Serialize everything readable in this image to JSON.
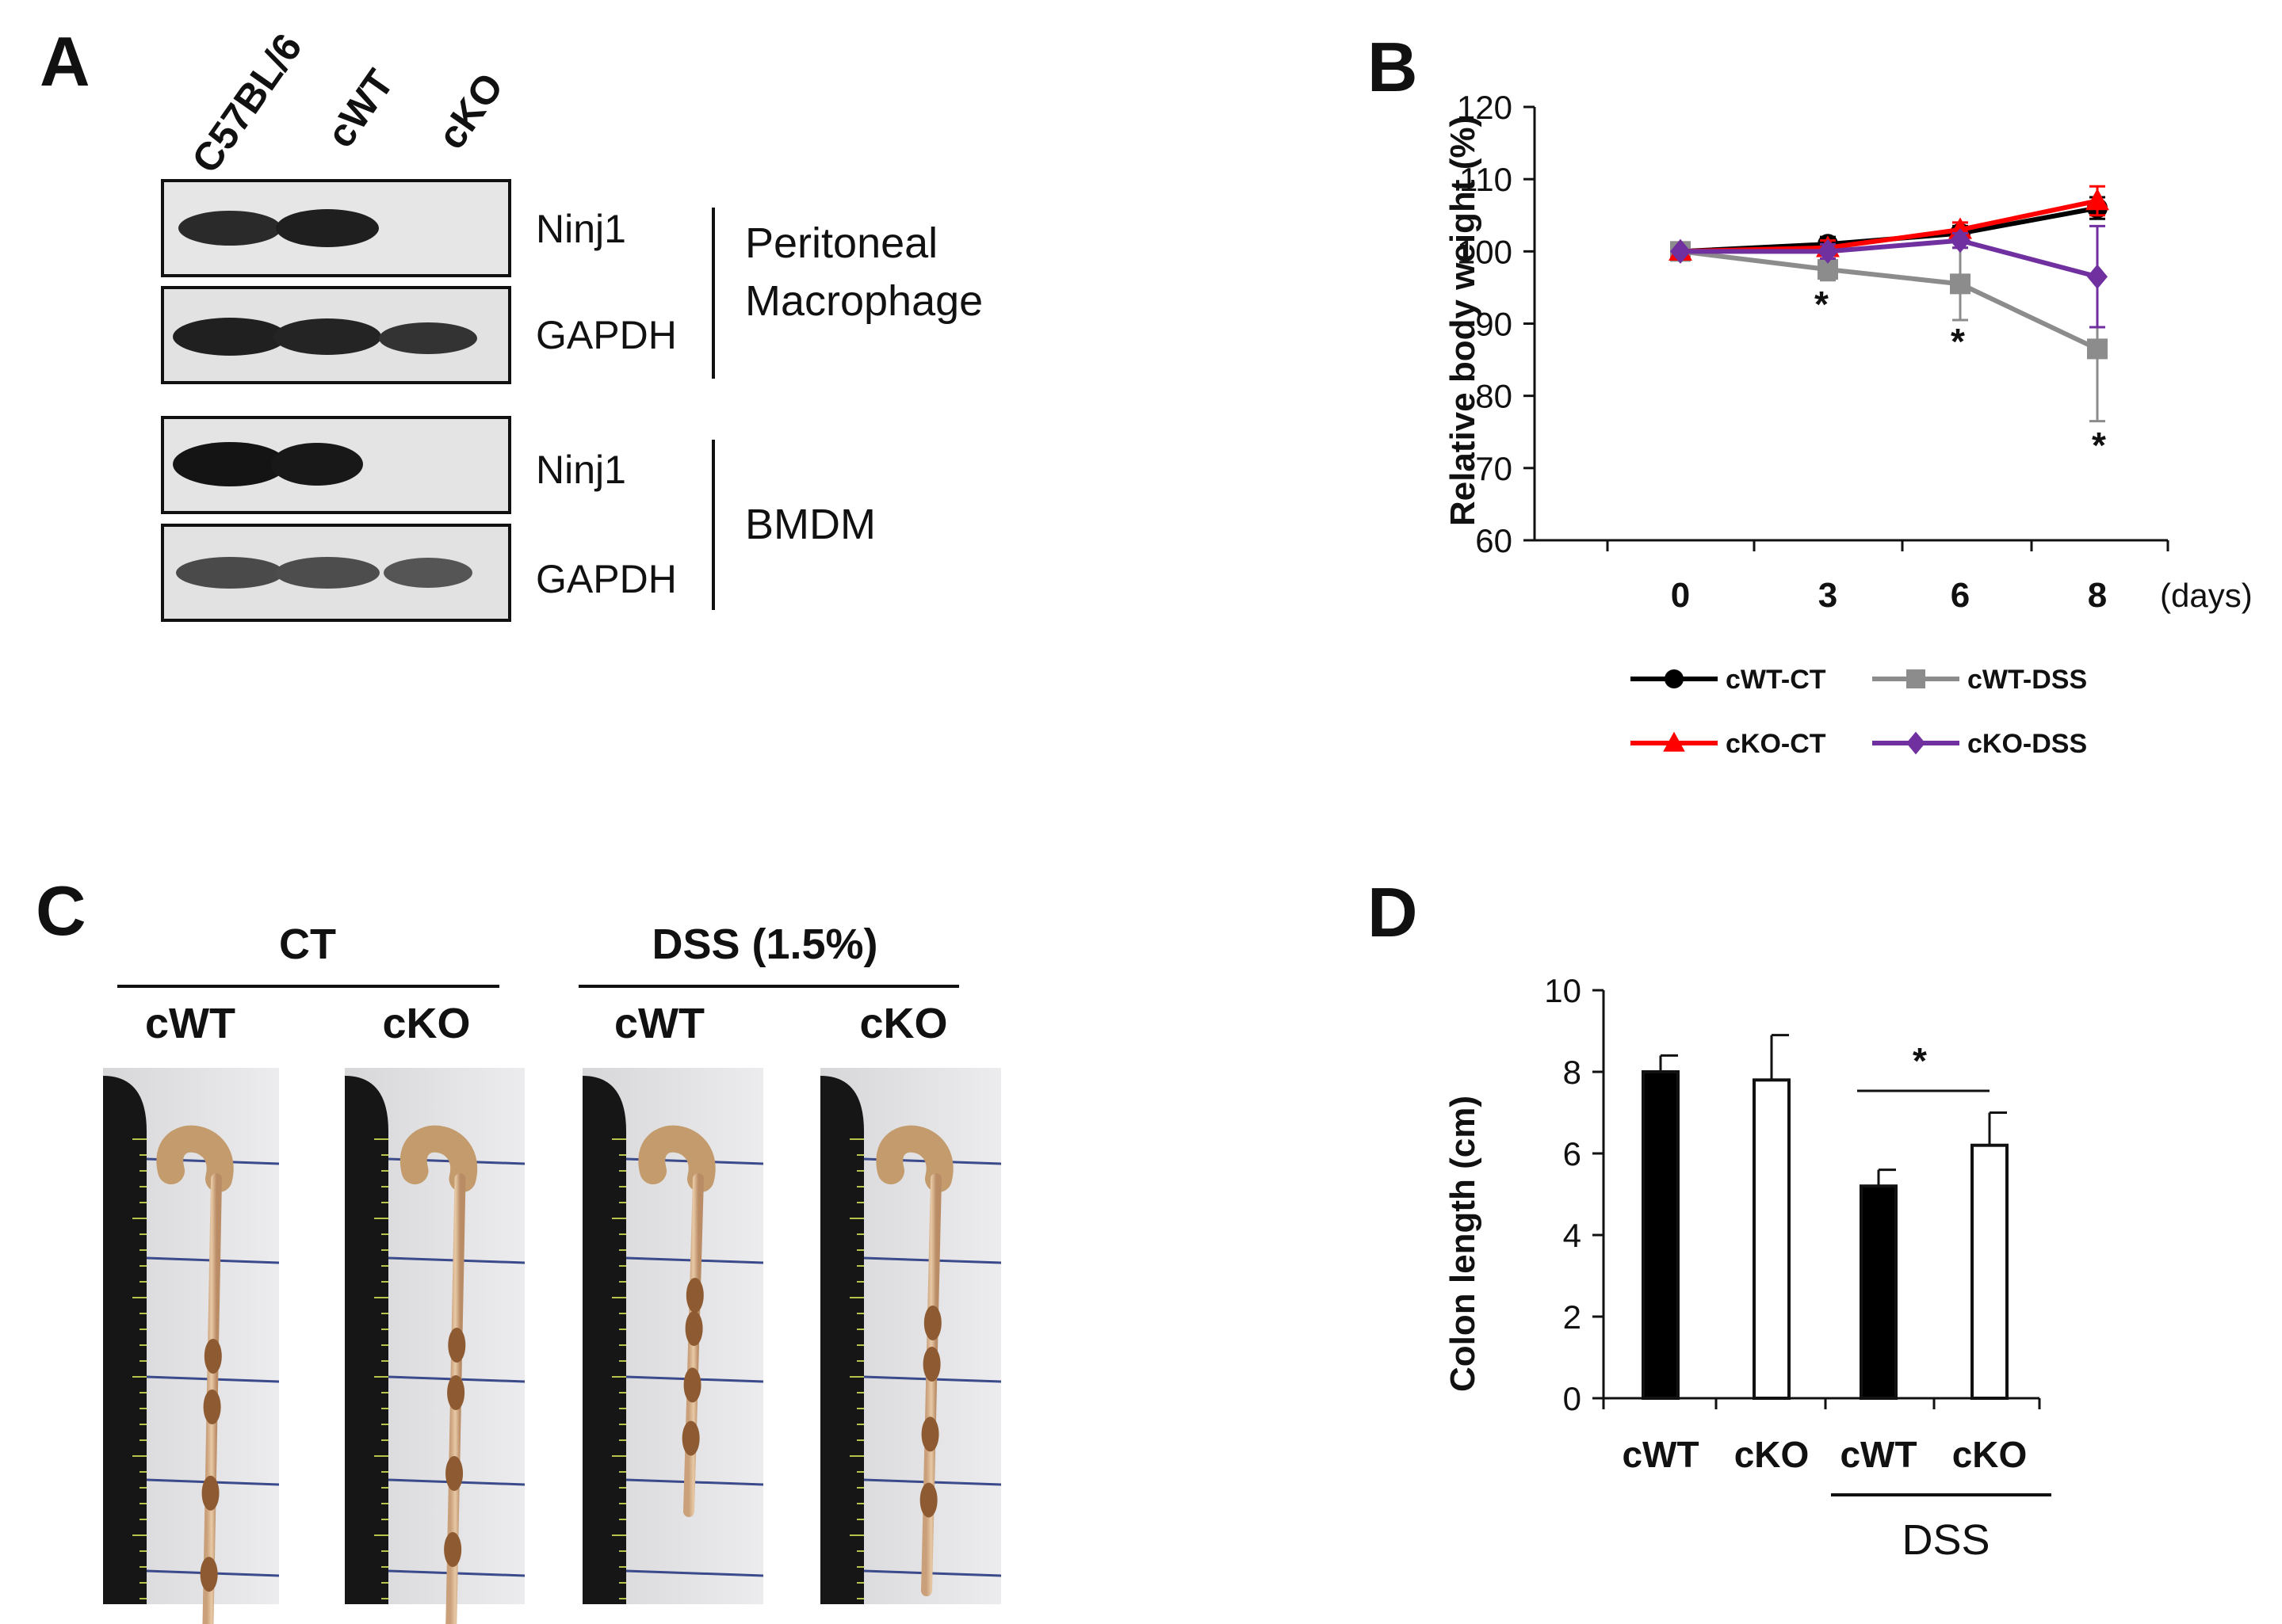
{
  "panels": {
    "a": "A",
    "b": "B",
    "c": "C",
    "d": "D"
  },
  "western": {
    "lanes": [
      "C57BL/6",
      "cWT",
      "cKO"
    ],
    "blots": [
      {
        "label": "Ninj1",
        "group": "peritoneal"
      },
      {
        "label": "GAPDH",
        "group": "peritoneal"
      },
      {
        "label": "Ninj1",
        "group": "bmdm"
      },
      {
        "label": "GAPDH",
        "group": "bmdm"
      }
    ],
    "groups": {
      "peritoneal_line1": "Peritoneal",
      "peritoneal_line2": "Macrophage",
      "bmdm": "BMDM"
    }
  },
  "chart_data": [
    {
      "type": "line",
      "title": "",
      "xlabel": "(days)",
      "ylabel": "Relative body weight (%)",
      "x": [
        0,
        3,
        6,
        8
      ],
      "x_tick_labels": [
        "0",
        "3",
        "6",
        "8"
      ],
      "ylim": [
        60,
        120
      ],
      "y_ticks": [
        60,
        70,
        80,
        90,
        100,
        110,
        120
      ],
      "series": [
        {
          "name": "cWT-CT",
          "values": [
            100,
            101,
            102.5,
            106
          ],
          "errors": [
            0.5,
            1,
            1,
            1.5
          ],
          "color": "#000000",
          "marker": "circle"
        },
        {
          "name": "cWT-DSS",
          "values": [
            100,
            97.5,
            95.5,
            86.5
          ],
          "errors": [
            0.5,
            1.5,
            5,
            10
          ],
          "color": "#8c8c8c",
          "marker": "square"
        },
        {
          "name": "cKO-CT",
          "values": [
            100,
            100.5,
            103,
            107
          ],
          "errors": [
            0.5,
            1,
            1,
            2
          ],
          "color": "#ff0000",
          "marker": "triangle"
        },
        {
          "name": "cKO-DSS",
          "values": [
            100,
            100,
            101.5,
            96.5
          ],
          "errors": [
            0.5,
            1,
            1,
            7
          ],
          "color": "#7030a0",
          "marker": "diamond"
        }
      ],
      "annotations": [
        "*",
        "*",
        "*"
      ],
      "legend": "bottom"
    },
    {
      "type": "bar",
      "title": "",
      "ylabel": "Colon length (cm)",
      "categories": [
        "cWT",
        "cKO",
        "cWT",
        "cKO"
      ],
      "values": [
        8.0,
        7.8,
        5.2,
        6.2
      ],
      "errors": [
        0.4,
        1.1,
        0.4,
        0.8
      ],
      "fills": [
        "#000000",
        "#ffffff",
        "#000000",
        "#ffffff"
      ],
      "ylim": [
        0,
        10
      ],
      "y_ticks": [
        0,
        2,
        4,
        6,
        8,
        10
      ],
      "group_label": "DSS",
      "significance": "*"
    }
  ],
  "photos": {
    "group_ct": "CT",
    "group_dss": "DSS (1.5%)",
    "labels": [
      "cWT",
      "cKO",
      "cWT",
      "cKO"
    ]
  }
}
